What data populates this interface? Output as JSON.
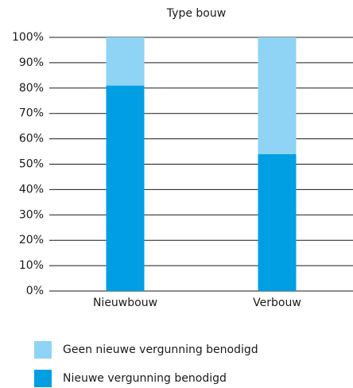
{
  "chart_data": {
    "type": "bar",
    "stacked": true,
    "title": "Type bouw",
    "categories": [
      "Nieuwbouw",
      "Verbouw"
    ],
    "series": [
      {
        "name": "Geen nieuwe vergunning benodigd",
        "color": "#8fd3f5",
        "values": [
          19,
          46
        ]
      },
      {
        "name": "Nieuwe vergunning benodigd",
        "color": "#009fe3",
        "values": [
          81,
          54
        ]
      }
    ],
    "ylim": [
      0,
      100
    ],
    "yticks": [
      {
        "value": 0,
        "label": "0%"
      },
      {
        "value": 10,
        "label": "10%"
      },
      {
        "value": 20,
        "label": "20%"
      },
      {
        "value": 30,
        "label": "30%"
      },
      {
        "value": 40,
        "label": "40%"
      },
      {
        "value": 50,
        "label": "50%"
      },
      {
        "value": 60,
        "label": "60%"
      },
      {
        "value": 70,
        "label": "70%"
      },
      {
        "value": 80,
        "label": "80%"
      },
      {
        "value": 90,
        "label": "90%"
      },
      {
        "value": 100,
        "label": "100%"
      }
    ],
    "grid": true,
    "legend": "bottom"
  }
}
